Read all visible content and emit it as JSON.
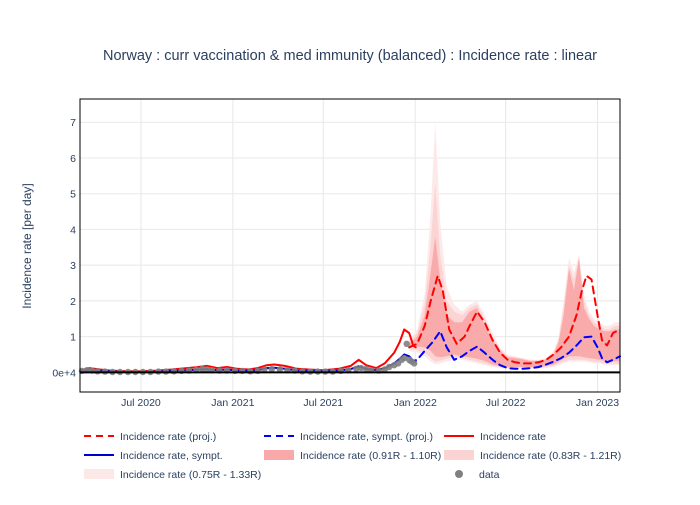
{
  "chart_data": {
    "type": "line",
    "title": "Norway : curr vaccination & med immunity (balanced) : Incidence rate : linear",
    "xlabel": "",
    "ylabel": "Incidence rate [per day]",
    "xlim": [
      "2020-03-01",
      "2023-02-15"
    ],
    "ylim": [
      -0.55,
      7.65
    ],
    "grid": true,
    "legend_position": "bottom",
    "x_ticks": [
      {
        "value": "2020-07-01",
        "label": "Jul 2020"
      },
      {
        "value": "2021-01-01",
        "label": "Jan 2021"
      },
      {
        "value": "2021-07-01",
        "label": "Jul 2021"
      },
      {
        "value": "2022-01-01",
        "label": "Jan 2022"
      },
      {
        "value": "2022-07-01",
        "label": "Jul 2022"
      },
      {
        "value": "2023-01-01",
        "label": "Jan 2023"
      }
    ],
    "y_ticks": [
      {
        "value": 0,
        "label": "0e+4"
      },
      {
        "value": 1,
        "label": "1"
      },
      {
        "value": 2,
        "label": "2"
      },
      {
        "value": 3,
        "label": "3"
      },
      {
        "value": 4,
        "label": "4"
      },
      {
        "value": 5,
        "label": "5"
      },
      {
        "value": 6,
        "label": "6"
      },
      {
        "value": 7,
        "label": "7"
      }
    ],
    "colors": {
      "proj": "#ff0000",
      "sympt_proj": "#0000ff",
      "actual": "#ff0000",
      "sympt": "#0000cc",
      "band_91": "#f9a9a9",
      "band_83": "#fcd3d3",
      "band_75": "#fde8e8",
      "data": "#808080",
      "zero_line": "#000000"
    },
    "series": [
      {
        "name": "Incidence rate (0.75R - 1.33R)",
        "kind": "band",
        "x": [
          "2021-12-20",
          "2022-01-05",
          "2022-01-20",
          "2022-02-01",
          "2022-02-10",
          "2022-02-20",
          "2022-03-05",
          "2022-03-20",
          "2022-04-05",
          "2022-04-20",
          "2022-05-05",
          "2022-05-20",
          "2022-06-05",
          "2022-06-20",
          "2022-07-05",
          "2022-07-20",
          "2022-08-05",
          "2022-08-20",
          "2022-09-05",
          "2022-09-20",
          "2022-10-05",
          "2022-10-15",
          "2022-10-25",
          "2022-11-05",
          "2022-11-15",
          "2022-11-25",
          "2022-12-05",
          "2022-12-15",
          "2022-12-25",
          "2023-01-05",
          "2023-01-15",
          "2023-01-25",
          "2023-02-05",
          "2023-02-15"
        ],
        "upper": [
          0.9,
          1.2,
          2.2,
          4.5,
          7.0,
          4.2,
          2.4,
          1.9,
          1.7,
          1.9,
          2.0,
          1.6,
          1.1,
          0.7,
          0.5,
          0.45,
          0.4,
          0.35,
          0.35,
          0.4,
          0.6,
          1.0,
          2.0,
          3.2,
          2.8,
          3.3,
          2.2,
          1.7,
          1.5,
          1.4,
          1.3,
          1.3,
          1.4,
          1.4
        ],
        "lower": [
          0.6,
          0.55,
          0.45,
          0.3,
          0.22,
          0.25,
          0.3,
          0.35,
          0.35,
          0.3,
          0.25,
          0.2,
          0.15,
          0.12,
          0.1,
          0.1,
          0.1,
          0.1,
          0.1,
          0.12,
          0.15,
          0.2,
          0.25,
          0.3,
          0.3,
          0.3,
          0.3,
          0.28,
          0.25,
          0.25,
          0.22,
          0.2,
          0.2,
          0.2
        ]
      },
      {
        "name": "Incidence rate (0.83R - 1.21R)",
        "kind": "band",
        "x": [
          "2021-12-20",
          "2022-01-05",
          "2022-01-20",
          "2022-02-01",
          "2022-02-10",
          "2022-02-20",
          "2022-03-05",
          "2022-03-20",
          "2022-04-05",
          "2022-04-20",
          "2022-05-05",
          "2022-05-20",
          "2022-06-05",
          "2022-06-20",
          "2022-07-05",
          "2022-07-20",
          "2022-08-05",
          "2022-08-20",
          "2022-09-05",
          "2022-09-20",
          "2022-10-05",
          "2022-10-15",
          "2022-10-25",
          "2022-11-05",
          "2022-11-15",
          "2022-11-25",
          "2022-12-05",
          "2022-12-15",
          "2022-12-25",
          "2023-01-05",
          "2023-01-15",
          "2023-01-25",
          "2023-02-05",
          "2023-02-15"
        ],
        "upper": [
          0.85,
          1.1,
          1.9,
          3.6,
          5.3,
          3.3,
          2.0,
          1.7,
          1.6,
          1.8,
          1.9,
          1.5,
          1.0,
          0.65,
          0.45,
          0.42,
          0.38,
          0.33,
          0.33,
          0.38,
          0.55,
          0.9,
          1.8,
          3.0,
          2.6,
          3.2,
          2.0,
          1.6,
          1.4,
          1.3,
          1.2,
          1.2,
          1.3,
          1.3
        ],
        "lower": [
          0.65,
          0.62,
          0.55,
          0.4,
          0.3,
          0.32,
          0.38,
          0.42,
          0.4,
          0.35,
          0.3,
          0.25,
          0.18,
          0.15,
          0.12,
          0.12,
          0.12,
          0.12,
          0.12,
          0.15,
          0.18,
          0.25,
          0.3,
          0.35,
          0.35,
          0.35,
          0.35,
          0.32,
          0.3,
          0.28,
          0.25,
          0.25,
          0.25,
          0.25
        ]
      },
      {
        "name": "Incidence rate (0.91R - 1.10R)",
        "kind": "band",
        "x": [
          "2021-12-20",
          "2022-01-05",
          "2022-01-20",
          "2022-02-01",
          "2022-02-10",
          "2022-02-20",
          "2022-03-05",
          "2022-03-20",
          "2022-04-05",
          "2022-04-20",
          "2022-05-05",
          "2022-05-20",
          "2022-06-05",
          "2022-06-20",
          "2022-07-05",
          "2022-07-20",
          "2022-08-05",
          "2022-08-20",
          "2022-09-05",
          "2022-09-20",
          "2022-10-05",
          "2022-10-15",
          "2022-10-25",
          "2022-11-05",
          "2022-11-15",
          "2022-11-25",
          "2022-12-05",
          "2022-12-15",
          "2022-12-25",
          "2023-01-05",
          "2023-01-15",
          "2023-01-25",
          "2023-02-05",
          "2023-02-15"
        ],
        "upper": [
          0.8,
          1.0,
          1.6,
          2.8,
          3.8,
          2.6,
          1.6,
          1.4,
          1.4,
          1.7,
          1.8,
          1.3,
          0.9,
          0.6,
          0.42,
          0.4,
          0.36,
          0.32,
          0.32,
          0.36,
          0.5,
          0.85,
          1.6,
          2.9,
          2.3,
          3.2,
          1.8,
          1.5,
          1.3,
          1.2,
          1.15,
          1.15,
          1.2,
          1.2
        ],
        "lower": [
          0.7,
          0.72,
          0.7,
          0.6,
          0.45,
          0.42,
          0.45,
          0.5,
          0.45,
          0.42,
          0.38,
          0.32,
          0.22,
          0.18,
          0.15,
          0.15,
          0.15,
          0.15,
          0.15,
          0.18,
          0.22,
          0.3,
          0.38,
          0.45,
          0.45,
          0.45,
          0.42,
          0.4,
          0.38,
          0.35,
          0.32,
          0.32,
          0.32,
          0.32
        ]
      },
      {
        "name": "Incidence rate (proj.)",
        "kind": "line",
        "dash": true,
        "x": [
          "2021-12-20",
          "2022-01-05",
          "2022-01-20",
          "2022-02-01",
          "2022-02-15",
          "2022-02-25",
          "2022-03-10",
          "2022-03-25",
          "2022-04-10",
          "2022-04-20",
          "2022-05-05",
          "2022-05-20",
          "2022-06-05",
          "2022-06-20",
          "2022-07-05",
          "2022-07-20",
          "2022-08-05",
          "2022-08-20",
          "2022-09-05",
          "2022-09-20",
          "2022-10-05",
          "2022-10-20",
          "2022-11-05",
          "2022-11-20",
          "2022-12-01",
          "2022-12-10",
          "2022-12-20",
          "2023-01-01",
          "2023-01-10",
          "2023-01-20",
          "2023-02-01",
          "2023-02-15"
        ],
        "values": [
          0.7,
          0.8,
          1.3,
          2.0,
          2.7,
          2.3,
          1.2,
          0.8,
          1.0,
          1.3,
          1.7,
          1.4,
          0.9,
          0.55,
          0.35,
          0.28,
          0.25,
          0.25,
          0.28,
          0.35,
          0.5,
          0.7,
          1.0,
          1.6,
          2.3,
          2.7,
          2.6,
          1.6,
          0.9,
          0.75,
          1.1,
          1.2
        ]
      },
      {
        "name": "Incidence rate, sympt. (proj.)",
        "kind": "line",
        "dash": true,
        "x": [
          "2021-12-20",
          "2022-01-05",
          "2022-01-20",
          "2022-02-05",
          "2022-02-20",
          "2022-03-05",
          "2022-03-20",
          "2022-04-05",
          "2022-04-20",
          "2022-05-05",
          "2022-05-20",
          "2022-06-05",
          "2022-06-20",
          "2022-07-05",
          "2022-07-20",
          "2022-08-05",
          "2022-08-20",
          "2022-09-05",
          "2022-09-20",
          "2022-10-05",
          "2022-10-20",
          "2022-11-05",
          "2022-11-20",
          "2022-12-05",
          "2022-12-20",
          "2023-01-01",
          "2023-01-10",
          "2023-01-20",
          "2023-02-01",
          "2023-02-15"
        ],
        "values": [
          0.28,
          0.35,
          0.6,
          0.85,
          1.15,
          0.7,
          0.35,
          0.45,
          0.6,
          0.72,
          0.55,
          0.35,
          0.2,
          0.12,
          0.1,
          0.1,
          0.12,
          0.15,
          0.22,
          0.3,
          0.4,
          0.55,
          0.75,
          0.98,
          1.0,
          0.7,
          0.4,
          0.28,
          0.35,
          0.45
        ]
      },
      {
        "name": "Incidence rate",
        "kind": "line",
        "dash": false,
        "x": [
          "2020-03-01",
          "2020-03-20",
          "2020-04-10",
          "2020-05-01",
          "2020-06-01",
          "2020-07-01",
          "2020-08-01",
          "2020-09-01",
          "2020-10-01",
          "2020-10-20",
          "2020-11-10",
          "2020-12-01",
          "2020-12-20",
          "2021-01-10",
          "2021-02-01",
          "2021-02-20",
          "2021-03-10",
          "2021-03-25",
          "2021-04-15",
          "2021-05-10",
          "2021-06-01",
          "2021-07-01",
          "2021-08-01",
          "2021-08-25",
          "2021-09-10",
          "2021-09-25",
          "2021-10-15",
          "2021-11-01",
          "2021-11-20",
          "2021-12-01",
          "2021-12-10",
          "2021-12-20",
          "2021-12-28",
          "2022-01-02"
        ],
        "values": [
          0.05,
          0.12,
          0.08,
          0.05,
          0.03,
          0.03,
          0.05,
          0.08,
          0.12,
          0.14,
          0.18,
          0.12,
          0.15,
          0.1,
          0.08,
          0.12,
          0.2,
          0.22,
          0.18,
          0.1,
          0.08,
          0.06,
          0.1,
          0.18,
          0.35,
          0.2,
          0.12,
          0.25,
          0.55,
          0.85,
          1.2,
          1.1,
          0.75,
          0.7
        ]
      },
      {
        "name": "Incidence rate, sympt.",
        "kind": "line",
        "dash": false,
        "x": [
          "2020-03-01",
          "2020-03-20",
          "2020-04-10",
          "2020-05-01",
          "2020-06-01",
          "2020-07-01",
          "2020-08-01",
          "2020-09-01",
          "2020-10-01",
          "2020-10-20",
          "2020-11-10",
          "2020-12-01",
          "2020-12-20",
          "2021-01-10",
          "2021-02-01",
          "2021-02-20",
          "2021-03-10",
          "2021-03-25",
          "2021-04-15",
          "2021-05-10",
          "2021-06-01",
          "2021-07-01",
          "2021-08-01",
          "2021-08-25",
          "2021-09-10",
          "2021-09-25",
          "2021-10-15",
          "2021-11-01",
          "2021-11-20",
          "2021-12-01",
          "2021-12-10",
          "2021-12-20",
          "2021-12-28",
          "2022-01-02"
        ],
        "values": [
          0.02,
          0.05,
          0.04,
          0.03,
          0.01,
          0.01,
          0.02,
          0.04,
          0.06,
          0.07,
          0.09,
          0.06,
          0.08,
          0.05,
          0.04,
          0.06,
          0.12,
          0.13,
          0.1,
          0.05,
          0.04,
          0.03,
          0.05,
          0.09,
          0.17,
          0.1,
          0.06,
          0.12,
          0.25,
          0.38,
          0.5,
          0.45,
          0.32,
          0.3
        ]
      },
      {
        "name": "data",
        "kind": "points",
        "x": [
          "2020-03-05",
          "2020-03-15",
          "2020-03-25",
          "2020-04-05",
          "2020-04-20",
          "2020-05-05",
          "2020-05-20",
          "2020-06-05",
          "2020-06-20",
          "2020-07-05",
          "2020-07-20",
          "2020-08-05",
          "2020-08-20",
          "2020-09-05",
          "2020-09-20",
          "2020-10-05",
          "2020-10-20",
          "2020-11-01",
          "2020-11-10",
          "2020-11-20",
          "2020-12-05",
          "2020-12-20",
          "2021-01-05",
          "2021-01-20",
          "2021-02-05",
          "2021-02-20",
          "2021-03-05",
          "2021-03-20",
          "2021-04-05",
          "2021-04-20",
          "2021-05-05",
          "2021-05-20",
          "2021-06-05",
          "2021-06-20",
          "2021-07-05",
          "2021-07-20",
          "2021-08-05",
          "2021-08-20",
          "2021-09-05",
          "2021-09-15",
          "2021-09-25",
          "2021-10-05",
          "2021-10-20",
          "2021-11-01",
          "2021-11-10",
          "2021-11-20",
          "2021-11-28",
          "2021-12-05",
          "2021-12-10",
          "2021-12-15",
          "2021-12-20",
          "2021-12-25",
          "2021-12-30"
        ],
        "values": [
          0.04,
          0.06,
          0.05,
          0.03,
          0.02,
          0.01,
          0.01,
          0.01,
          0.01,
          0.01,
          0.01,
          0.02,
          0.02,
          0.03,
          0.04,
          0.05,
          0.07,
          0.1,
          0.08,
          0.06,
          0.05,
          0.05,
          0.04,
          0.04,
          0.03,
          0.04,
          0.07,
          0.09,
          0.08,
          0.06,
          0.05,
          0.03,
          0.02,
          0.02,
          0.02,
          0.02,
          0.04,
          0.06,
          0.1,
          0.12,
          0.1,
          0.06,
          0.05,
          0.08,
          0.15,
          0.2,
          0.25,
          0.35,
          0.4,
          0.8,
          0.35,
          0.3,
          0.25
        ]
      }
    ],
    "legend": [
      {
        "label": "Incidence rate (proj.)",
        "kind": "dash",
        "color": "#ff0000"
      },
      {
        "label": "Incidence rate, sympt. (proj.)",
        "kind": "dash",
        "color": "#0000ff"
      },
      {
        "label": "Incidence rate",
        "kind": "line",
        "color": "#ff0000"
      },
      {
        "label": "Incidence rate, sympt.",
        "kind": "line",
        "color": "#0000cc"
      },
      {
        "label": "Incidence rate (0.91R - 1.10R)",
        "kind": "band",
        "color": "#f9a9a9"
      },
      {
        "label": "Incidence rate (0.83R - 1.21R)",
        "kind": "band",
        "color": "#fcd3d3"
      },
      {
        "label": "Incidence rate (0.75R - 1.33R)",
        "kind": "band",
        "color": "#fde8e8"
      },
      {
        "label": "data",
        "kind": "point",
        "color": "#808080"
      }
    ]
  }
}
